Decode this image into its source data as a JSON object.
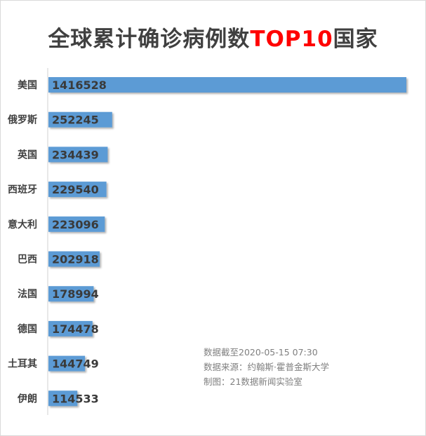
{
  "title": {
    "prefix": "全球累计确诊病例数",
    "highlight": "TOP10",
    "suffix": "国家"
  },
  "notes": {
    "cutoff": "数据截至2020-05-15 07:30",
    "source": "数据来源：约翰斯·霍普金斯大学",
    "credit": "制图：21数据新闻实验室"
  },
  "colors": {
    "bar": "#5b9bd5",
    "title": "#404040",
    "highlight": "#ff0000"
  },
  "chart_data": {
    "type": "bar",
    "orientation": "horizontal",
    "title": "全球累计确诊病例数TOP10国家",
    "categories": [
      "美国",
      "俄罗斯",
      "英国",
      "西班牙",
      "意大利",
      "巴西",
      "法国",
      "德国",
      "土耳其",
      "伊朗"
    ],
    "values": [
      1416528,
      252245,
      234439,
      229540,
      223096,
      202918,
      178994,
      174478,
      144749,
      114533
    ],
    "xlim": [
      0,
      1416528
    ],
    "grid": false,
    "legend": "none",
    "data_labels": true
  }
}
